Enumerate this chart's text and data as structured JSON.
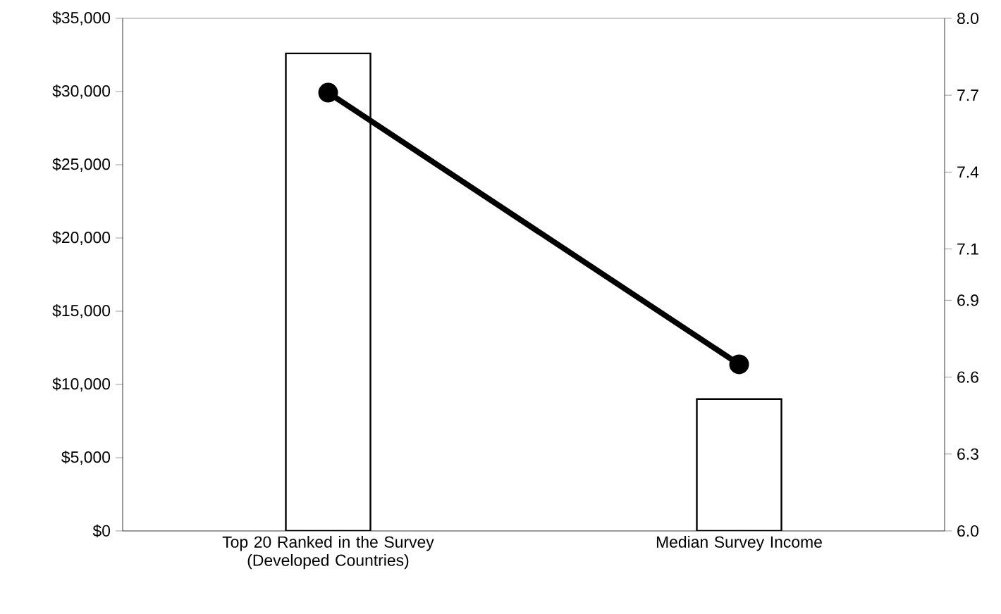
{
  "chart_data": {
    "type": "bar",
    "categories": [
      "Top 20 Ranked in the Survey (Developed Countries)",
      "Median Survey Income"
    ],
    "series": [
      {
        "color": "#ffffff",
        "values": [
          32600,
          9000
        ]
      },
      {
        "type": "line",
        "axis": "y2",
        "color": "#000000",
        "marker": "circle",
        "line_style": "solid",
        "values": [
          7.71,
          6.65
        ]
      }
    ],
    "ylim": [
      0,
      35000
    ],
    "yticks": [
      {
        "value": 0,
        "label": "$0"
      },
      {
        "value": 5000,
        "label": "$5,000"
      },
      {
        "value": 10000,
        "label": "$10,000"
      },
      {
        "value": 15000,
        "label": "$15,000"
      },
      {
        "value": 20000,
        "label": "$20,000"
      },
      {
        "value": 25000,
        "label": "$25,000"
      },
      {
        "value": 30000,
        "label": "$30,000"
      },
      {
        "value": 35000,
        "label": "$35,000"
      }
    ],
    "y2lim": [
      6.0,
      8.0
    ],
    "y2ticks": [
      {
        "value": 6.0,
        "label": "6.0"
      },
      6.3,
      6.6,
      6.9,
      7.1,
      7.4,
      7.7,
      {
        "value": 8.0,
        "label": "8.0"
      }
    ],
    "grid": false,
    "legend": false
  }
}
